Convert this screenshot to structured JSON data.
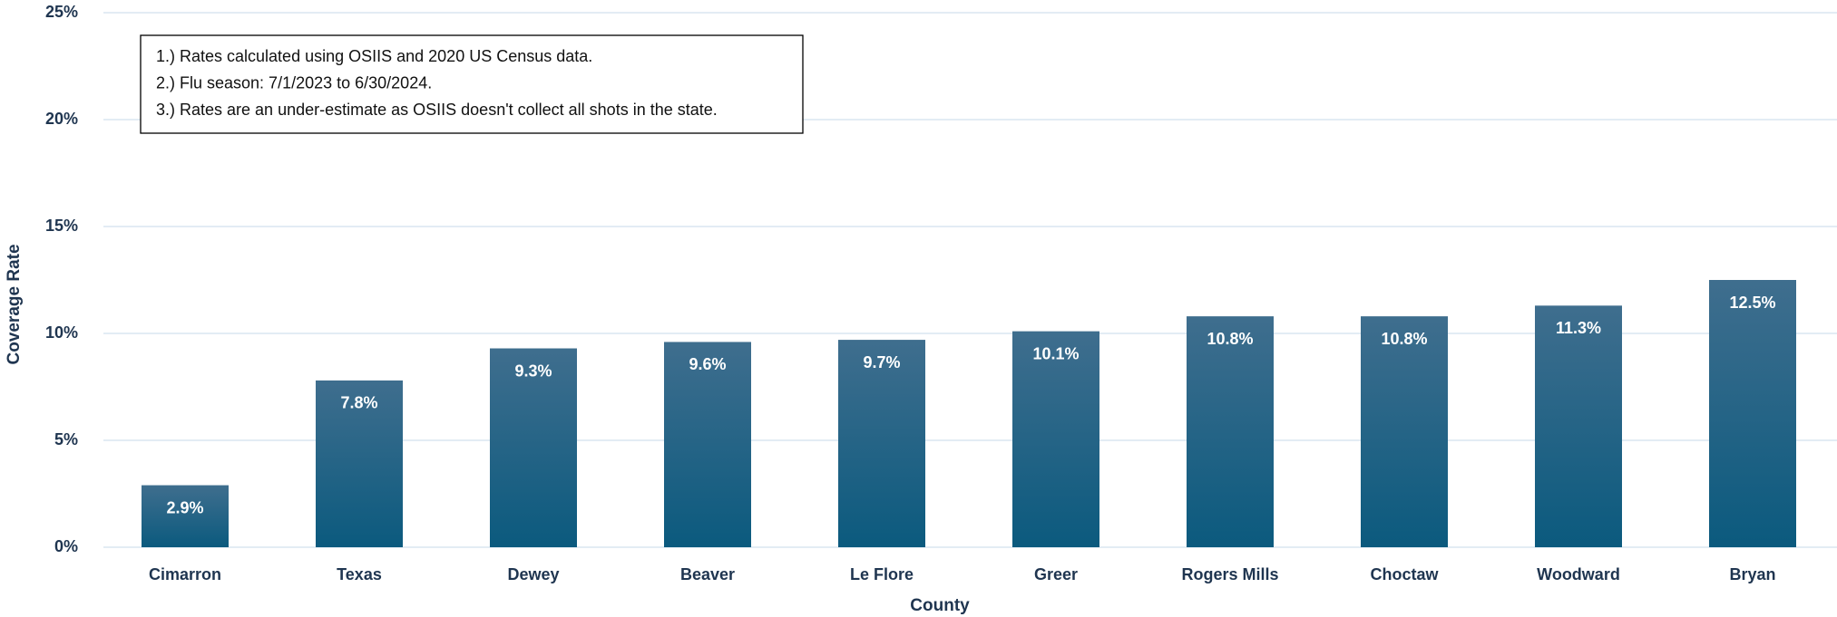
{
  "chart_data": {
    "type": "bar",
    "x_label": "County",
    "y_label": "Coverage Rate",
    "annotations": [
      "1.) Rates calculated using OSIIS and 2020 US Census data.",
      "2.) Flu season: 7/1/2023 to 6/30/2024.",
      "3.) Rates are an under-estimate as OSIIS doesn't collect all shots in the state."
    ],
    "categories": [
      "Cimarron",
      "Texas",
      "Dewey",
      "Beaver",
      "Le Flore",
      "Greer",
      "Rogers Mills",
      "Choctaw",
      "Woodward",
      "Bryan"
    ],
    "values": [
      2.9,
      7.8,
      9.3,
      9.6,
      9.7,
      10.1,
      10.8,
      10.8,
      11.3,
      12.5
    ],
    "value_labels": [
      "2.9%",
      "7.8%",
      "9.3%",
      "9.6%",
      "9.7%",
      "10.1%",
      "10.8%",
      "10.8%",
      "11.3%",
      "12.5%"
    ],
    "color": "#0b5a7e",
    "color_top": "#3f6e8e",
    "ylim": [
      0,
      25
    ],
    "yticks": [
      {
        "value": 0,
        "label": "0%"
      },
      {
        "value": 5,
        "label": "5%"
      },
      {
        "value": 10,
        "label": "10%"
      },
      {
        "value": 15,
        "label": "15%"
      },
      {
        "value": 20,
        "label": "20%"
      },
      {
        "value": 25,
        "label": "25%"
      }
    ],
    "grid": true
  }
}
